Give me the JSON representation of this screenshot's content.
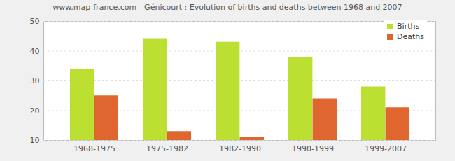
{
  "chart_data": {
    "type": "bar",
    "title": "www.map-france.com - Génicourt : Evolution of births and deaths between 1968 and 2007",
    "categories": [
      "1968-1975",
      "1975-1982",
      "1982-1990",
      "1990-1999",
      "1999-2007"
    ],
    "series": [
      {
        "name": "Births",
        "color": "#bbe032",
        "values": [
          34,
          44,
          43,
          38,
          28
        ]
      },
      {
        "name": "Deaths",
        "color": "#e06630",
        "values": [
          25,
          13,
          11,
          24,
          21
        ]
      }
    ],
    "ylim": [
      10,
      50
    ],
    "yticks": [
      10,
      20,
      30,
      40,
      50
    ],
    "grid": true,
    "legend": "top-right"
  }
}
